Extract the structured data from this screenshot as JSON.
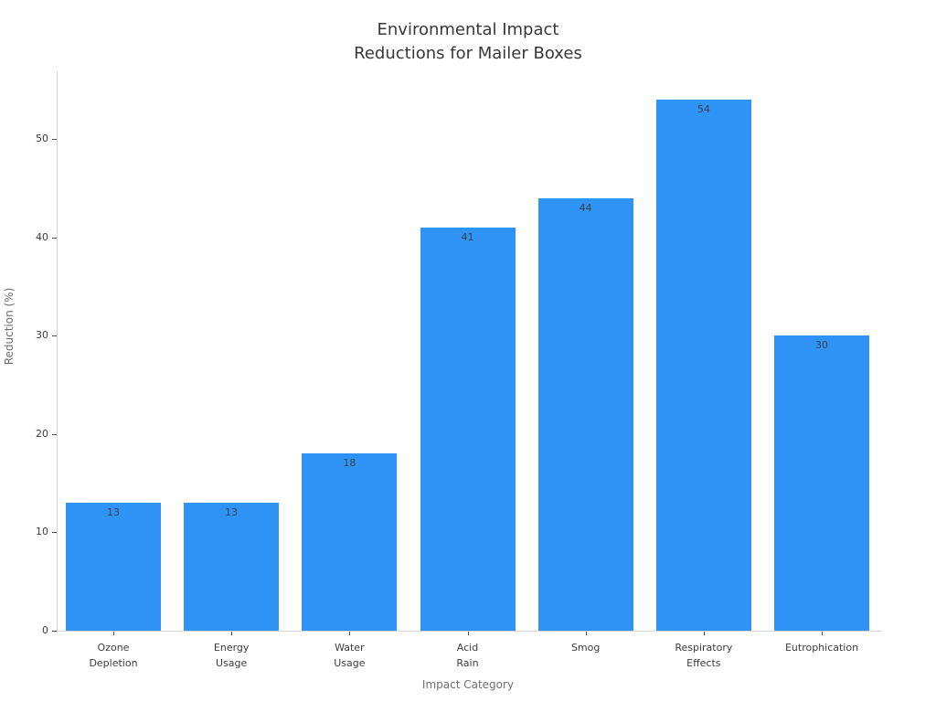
{
  "chart_data": {
    "type": "bar",
    "title": "Environmental Impact\nReductions for Mailer Boxes",
    "xlabel": "Impact Category",
    "ylabel": "Reduction (%)",
    "categories": [
      "Ozone\nDepletion",
      "Energy\nUsage",
      "Water\nUsage",
      "Acid\nRain",
      "Smog",
      "Respiratory\nEffects",
      "Eutrophication"
    ],
    "values": [
      13,
      13,
      18,
      41,
      44,
      54,
      30
    ],
    "yticks": [
      0,
      10,
      20,
      30,
      40,
      50
    ],
    "ylim": [
      0,
      57
    ],
    "grid": false,
    "legend": "none",
    "bar_color": "#2E93F5",
    "value_label_color": "#37424d",
    "value_labels_shown": true
  }
}
